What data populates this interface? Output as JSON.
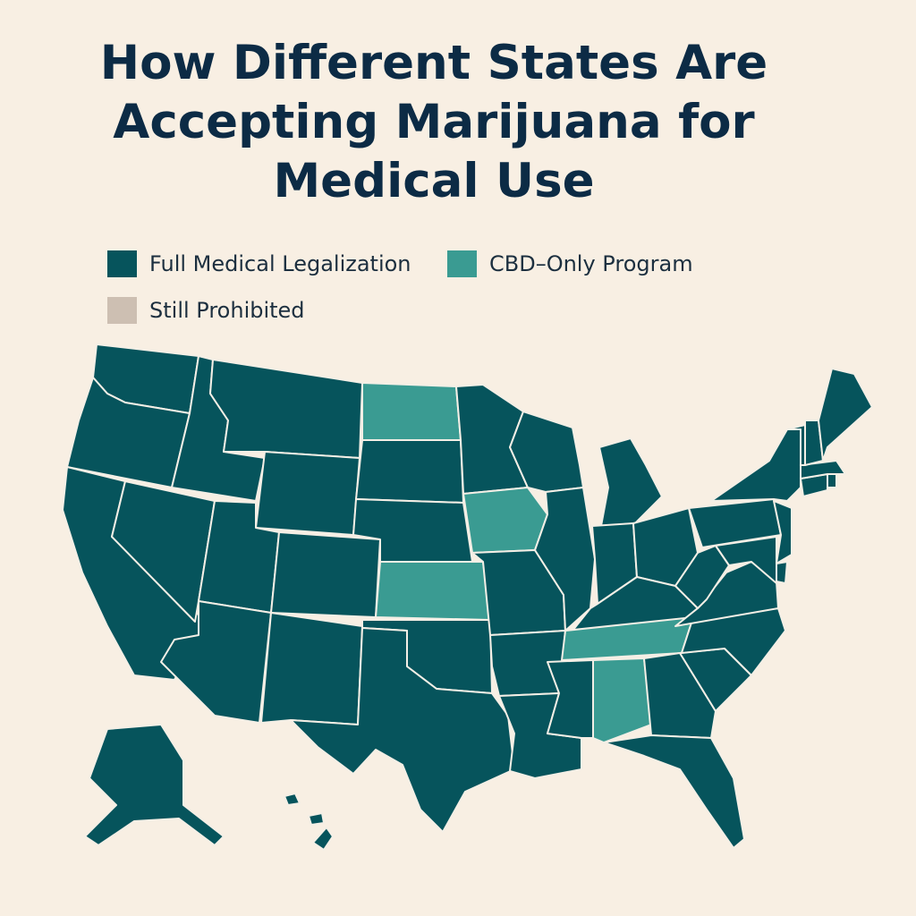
{
  "title": {
    "lines": [
      "How Different States Are",
      "Accepting Marijuana for",
      "Medical Use"
    ]
  },
  "legend": {
    "items": [
      {
        "key": "full",
        "label": "Full Medical Legalization",
        "color": "#06545c"
      },
      {
        "key": "cbd",
        "label": "CBD–Only Program",
        "color": "#3a9b92"
      },
      {
        "key": "prohibited",
        "label": "Still Prohibited",
        "color": "#cdbfb2"
      }
    ]
  },
  "map": {
    "region": "United States",
    "states": [
      {
        "name": "Washington",
        "status": "full"
      },
      {
        "name": "Oregon",
        "status": "full"
      },
      {
        "name": "California",
        "status": "full"
      },
      {
        "name": "Idaho",
        "status": "full"
      },
      {
        "name": "Nevada",
        "status": "full"
      },
      {
        "name": "Montana",
        "status": "full"
      },
      {
        "name": "Wyoming",
        "status": "full"
      },
      {
        "name": "Utah",
        "status": "full"
      },
      {
        "name": "Arizona",
        "status": "full"
      },
      {
        "name": "Colorado",
        "status": "full"
      },
      {
        "name": "New Mexico",
        "status": "full"
      },
      {
        "name": "North Dakota",
        "status": "cbd"
      },
      {
        "name": "South Dakota",
        "status": "full"
      },
      {
        "name": "Nebraska",
        "status": "full"
      },
      {
        "name": "Kansas",
        "status": "cbd"
      },
      {
        "name": "Oklahoma",
        "status": "full"
      },
      {
        "name": "Texas",
        "status": "full"
      },
      {
        "name": "Minnesota",
        "status": "full"
      },
      {
        "name": "Iowa",
        "status": "cbd"
      },
      {
        "name": "Missouri",
        "status": "full"
      },
      {
        "name": "Arkansas",
        "status": "full"
      },
      {
        "name": "Louisiana",
        "status": "full"
      },
      {
        "name": "Wisconsin",
        "status": "full"
      },
      {
        "name": "Illinois",
        "status": "full"
      },
      {
        "name": "Michigan",
        "status": "full"
      },
      {
        "name": "Indiana",
        "status": "full"
      },
      {
        "name": "Ohio",
        "status": "full"
      },
      {
        "name": "Kentucky",
        "status": "full"
      },
      {
        "name": "Tennessee",
        "status": "cbd"
      },
      {
        "name": "Mississippi",
        "status": "full"
      },
      {
        "name": "Alabama",
        "status": "cbd"
      },
      {
        "name": "Georgia",
        "status": "full"
      },
      {
        "name": "Florida",
        "status": "full"
      },
      {
        "name": "South Carolina",
        "status": "full"
      },
      {
        "name": "North Carolina",
        "status": "full"
      },
      {
        "name": "Virginia",
        "status": "full"
      },
      {
        "name": "West Virginia",
        "status": "full"
      },
      {
        "name": "Pennsylvania",
        "status": "full"
      },
      {
        "name": "New York",
        "status": "full"
      },
      {
        "name": "New Jersey",
        "status": "full"
      },
      {
        "name": "Delaware",
        "status": "full"
      },
      {
        "name": "Maryland",
        "status": "full"
      },
      {
        "name": "Connecticut",
        "status": "full"
      },
      {
        "name": "Rhode Island",
        "status": "full"
      },
      {
        "name": "Massachusetts",
        "status": "full"
      },
      {
        "name": "Vermont",
        "status": "full"
      },
      {
        "name": "New Hampshire",
        "status": "full"
      },
      {
        "name": "Maine",
        "status": "full"
      },
      {
        "name": "Alaska",
        "status": "full"
      },
      {
        "name": "Hawaii",
        "status": "full"
      }
    ]
  }
}
